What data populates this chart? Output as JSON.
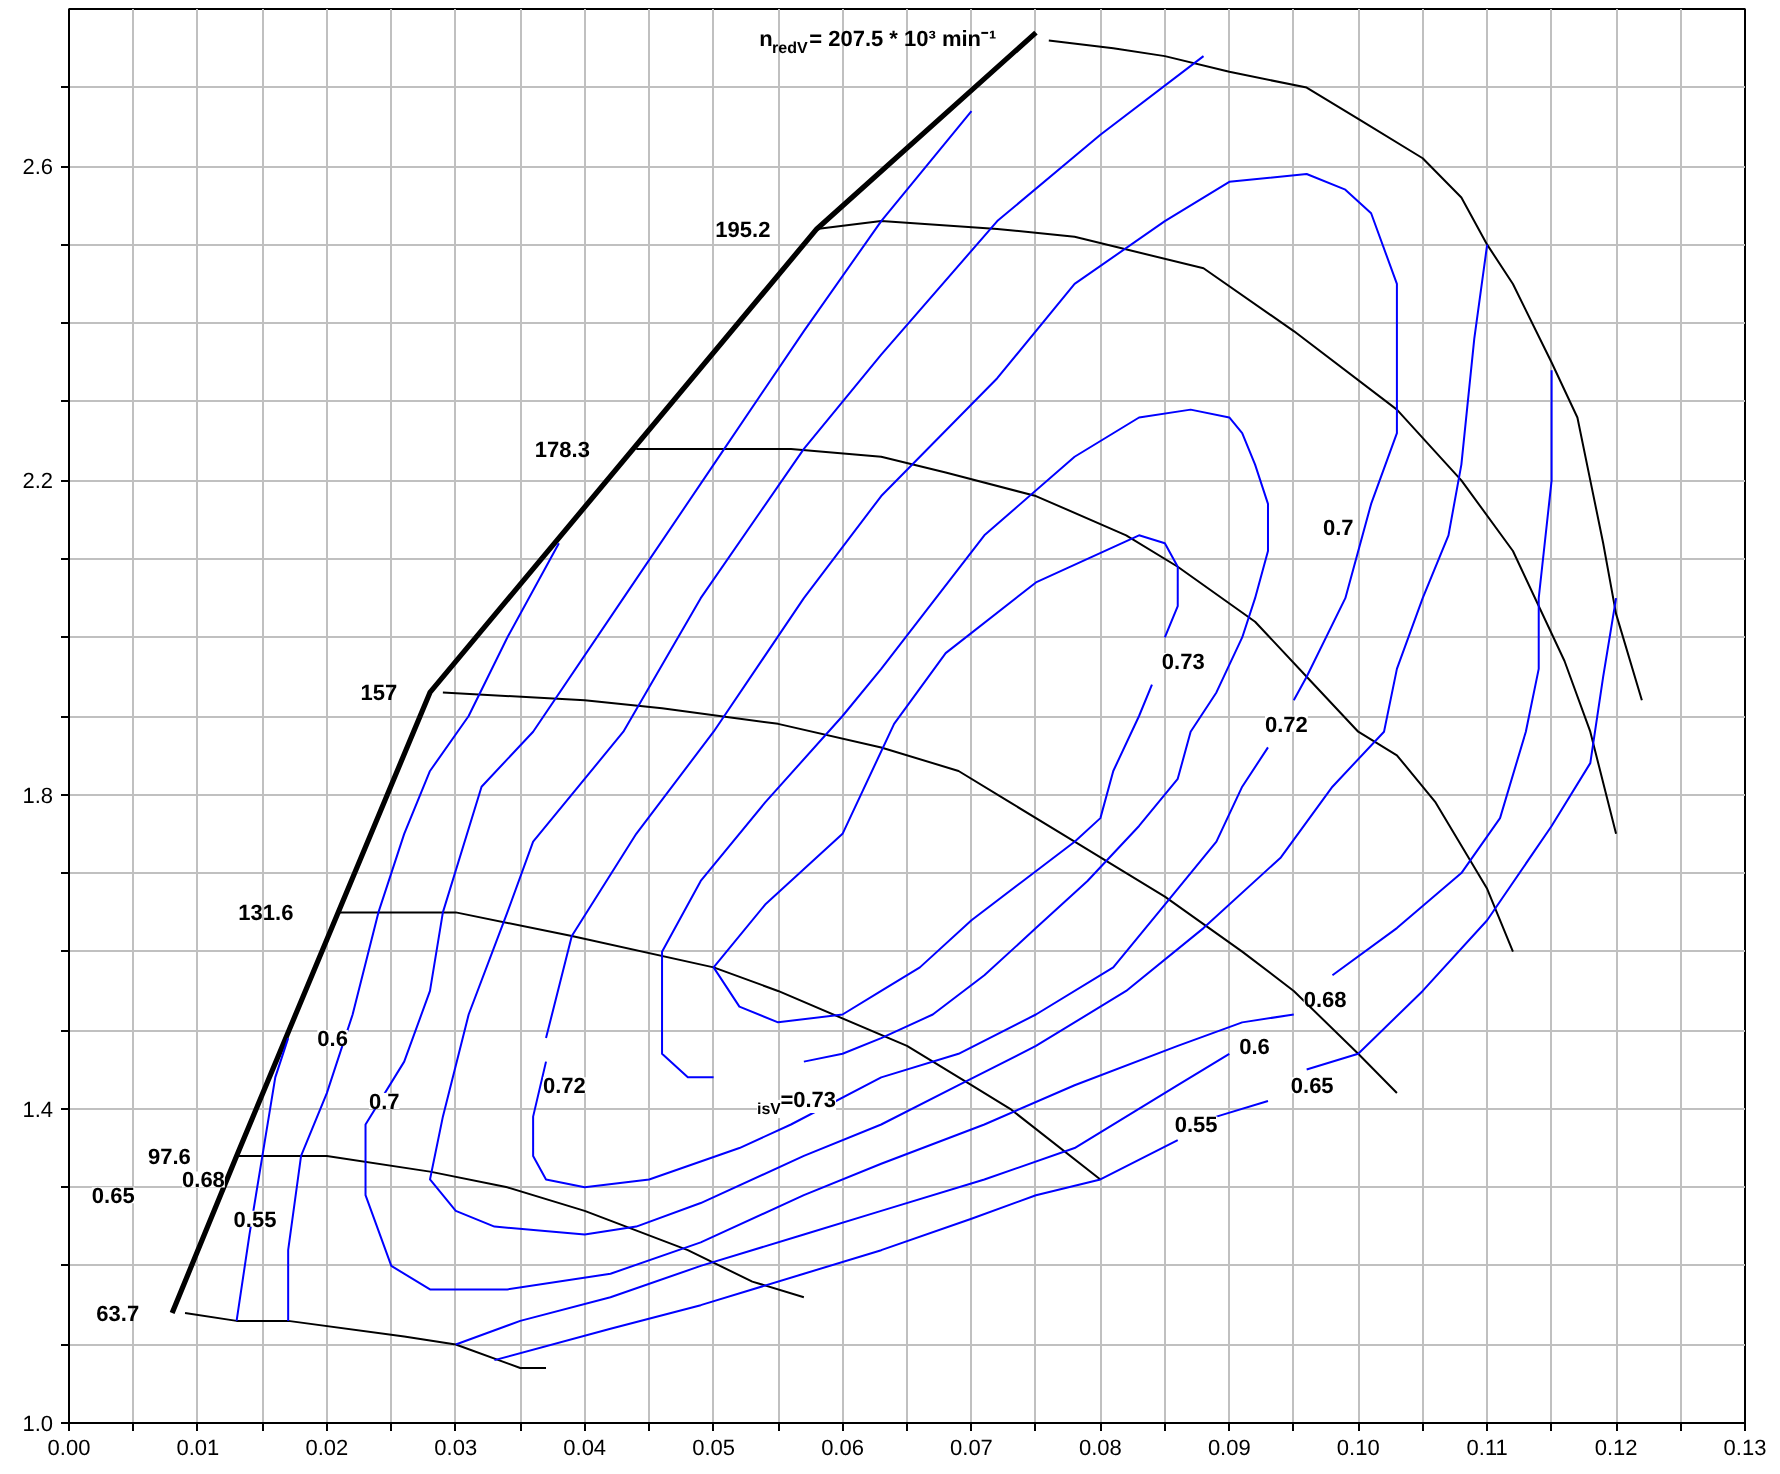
{
  "chart_data": {
    "type": "line",
    "xlim": [
      0,
      0.13
    ],
    "ylim": [
      1.0,
      2.8
    ],
    "xticks": [
      {
        "value": 0,
        "label": "0.00"
      },
      {
        "value": 0.005,
        "label": null
      },
      {
        "value": 0.01,
        "label": "0.01"
      },
      {
        "value": 0.015,
        "label": null
      },
      {
        "value": 0.02,
        "label": "0.02"
      },
      {
        "value": 0.025,
        "label": null
      },
      {
        "value": 0.03,
        "label": "0.03"
      },
      {
        "value": 0.035,
        "label": null
      },
      {
        "value": 0.04,
        "label": "0.04"
      },
      {
        "value": 0.045,
        "label": null
      },
      {
        "value": 0.05,
        "label": "0.05"
      },
      {
        "value": 0.055,
        "label": null
      },
      {
        "value": 0.06,
        "label": "0.06"
      },
      {
        "value": 0.065,
        "label": null
      },
      {
        "value": 0.07,
        "label": "0.07"
      },
      {
        "value": 0.075,
        "label": null
      },
      {
        "value": 0.08,
        "label": "0.08"
      },
      {
        "value": 0.085,
        "label": null
      },
      {
        "value": 0.09,
        "label": "0.09"
      },
      {
        "value": 0.095,
        "label": null
      },
      {
        "value": 0.1,
        "label": "0.10"
      },
      {
        "value": 0.105,
        "label": null
      },
      {
        "value": 0.11,
        "label": "0.11"
      },
      {
        "value": 0.115,
        "label": null
      },
      {
        "value": 0.12,
        "label": "0.12"
      },
      {
        "value": 0.125,
        "label": null
      },
      {
        "value": 0.13,
        "label": "0.13"
      }
    ],
    "yticks": [
      {
        "value": 1.0,
        "label": "1.0"
      },
      {
        "value": 1.1,
        "label": null
      },
      {
        "value": 1.2,
        "label": null
      },
      {
        "value": 1.3,
        "label": null
      },
      1.4,
      {
        "value": 1.5,
        "label": null
      },
      {
        "value": 1.6,
        "label": null
      },
      {
        "value": 1.7,
        "label": null
      },
      1.8,
      {
        "value": 1.9,
        "label": null
      },
      {
        "value": 2.0,
        "label": null
      },
      {
        "value": 2.1,
        "label": null
      },
      2.2,
      {
        "value": 2.3,
        "label": null
      },
      {
        "value": 2.4,
        "label": null
      },
      {
        "value": 2.5,
        "label": null
      },
      2.6,
      {
        "value": 2.7,
        "label": null
      }
    ],
    "grid": true,
    "series": [
      {
        "color": "#000000",
        "x": [
          0.008,
          0.013,
          0.028,
          0.058,
          0.075
        ],
        "values": [
          1.14,
          1.34,
          1.93,
          2.52,
          2.77
        ]
      },
      {
        "name": "63.7",
        "color": "#000000",
        "x": [
          0.009,
          0.013,
          0.017,
          0.026,
          0.03,
          0.035,
          0.037
        ],
        "values": [
          1.14,
          1.13,
          1.13,
          1.11,
          1.1,
          1.07,
          1.07
        ]
      },
      {
        "name": "97.6",
        "color": "#000000",
        "x": [
          0.013,
          0.02,
          0.028,
          0.034,
          0.04,
          0.048,
          0.053,
          0.057
        ],
        "values": [
          1.34,
          1.34,
          1.32,
          1.3,
          1.27,
          1.22,
          1.18,
          1.16
        ]
      },
      {
        "name": "131.6",
        "color": "#000000",
        "x": [
          0.021,
          0.03,
          0.039,
          0.05,
          0.055,
          0.065,
          0.07,
          0.073,
          0.08
        ],
        "values": [
          1.65,
          1.65,
          1.62,
          1.58,
          1.55,
          1.48,
          1.43,
          1.4,
          1.31
        ]
      },
      {
        "name": "157",
        "color": "#000000",
        "x": [
          0.029,
          0.04,
          0.046,
          0.055,
          0.063,
          0.069,
          0.073,
          0.078,
          0.085,
          0.091,
          0.095,
          0.1,
          0.103
        ],
        "values": [
          1.93,
          1.92,
          1.91,
          1.89,
          1.86,
          1.83,
          1.79,
          1.74,
          1.67,
          1.6,
          1.55,
          1.47,
          1.42
        ]
      },
      {
        "name": "178.3",
        "color": "#000000",
        "x": [
          0.044,
          0.056,
          0.063,
          0.068,
          0.075,
          0.082,
          0.086,
          0.092,
          0.096,
          0.1,
          0.103,
          0.106,
          0.11,
          0.112
        ],
        "values": [
          2.24,
          2.24,
          2.23,
          2.21,
          2.18,
          2.13,
          2.09,
          2.02,
          1.95,
          1.88,
          1.85,
          1.79,
          1.68,
          1.6
        ]
      },
      {
        "name": "195.2",
        "color": "#000000",
        "x": [
          0.058,
          0.063,
          0.072,
          0.078,
          0.088,
          0.095,
          0.103,
          0.108,
          0.112,
          0.116,
          0.118,
          0.12
        ],
        "values": [
          2.52,
          2.53,
          2.52,
          2.51,
          2.47,
          2.39,
          2.29,
          2.2,
          2.11,
          1.97,
          1.88,
          1.75
        ]
      },
      {
        "name": "n$_{redV}$= 207.5 * 10³ min⁻¹",
        "color": "#000000",
        "x": [
          0.076,
          0.081,
          0.085,
          0.09,
          0.096,
          0.1,
          0.105,
          0.108,
          0.11,
          0.112,
          0.115,
          0.117,
          0.118,
          0.119,
          0.12,
          0.122
        ],
        "values": [
          2.76,
          2.75,
          2.74,
          2.72,
          2.7,
          2.66,
          2.61,
          2.56,
          2.5,
          2.45,
          2.35,
          2.28,
          2.2,
          2.12,
          2.03,
          1.92
        ]
      },
      {
        "color": "#0000ff",
        "x": [
          0.013,
          0.014,
          0.015,
          0.016,
          0.017
        ],
        "values": [
          1.13,
          1.24,
          1.34,
          1.44,
          1.49
        ]
      },
      {
        "color": "#0000ff",
        "x": [
          0.017,
          0.017,
          0.018,
          0.02,
          0.022,
          0.024,
          0.026,
          0.028,
          0.031,
          0.034,
          0.038
        ],
        "values": [
          1.13,
          1.22,
          1.34,
          1.42,
          1.52,
          1.65,
          1.75,
          1.83,
          1.9,
          2.0,
          2.12
        ]
      },
      {
        "color": "#0000ff",
        "x": [
          0.07,
          0.063,
          0.057,
          0.05,
          0.043,
          0.036,
          0.032,
          0.029,
          0.028,
          0.026,
          0.023,
          0.023,
          0.025,
          0.028,
          0.034,
          0.042,
          0.049,
          0.057,
          0.063,
          0.071,
          0.078,
          0.086,
          0.091,
          0.095
        ],
        "values": [
          2.67,
          2.53,
          2.39,
          2.22,
          2.05,
          1.88,
          1.81,
          1.65,
          1.55,
          1.46,
          1.38,
          1.29,
          1.2,
          1.17,
          1.17,
          1.19,
          1.23,
          1.29,
          1.33,
          1.38,
          1.43,
          1.48,
          1.51,
          1.52
        ]
      },
      {
        "color": "#0000ff",
        "x": [
          0.098,
          0.103,
          0.108,
          0.111,
          0.113,
          0.114,
          0.114,
          0.115,
          0.115
        ],
        "values": [
          1.57,
          1.63,
          1.7,
          1.77,
          1.88,
          1.96,
          2.05,
          2.2,
          2.34
        ]
      },
      {
        "color": "#0000ff",
        "x": [
          0.088,
          0.08,
          0.072,
          0.063,
          0.057,
          0.049,
          0.043,
          0.036,
          0.034,
          0.031,
          0.029,
          0.028,
          0.03,
          0.033,
          0.04,
          0.044,
          0.049,
          0.057,
          0.063,
          0.069,
          0.075,
          0.082,
          0.088,
          0.094,
          0.098,
          0.102,
          0.103,
          0.105,
          0.107,
          0.108,
          0.109,
          0.11
        ],
        "values": [
          2.74,
          2.64,
          2.53,
          2.36,
          2.24,
          2.05,
          1.88,
          1.74,
          1.65,
          1.52,
          1.39,
          1.31,
          1.27,
          1.25,
          1.24,
          1.25,
          1.28,
          1.34,
          1.38,
          1.43,
          1.48,
          1.55,
          1.63,
          1.72,
          1.81,
          1.88,
          1.96,
          2.05,
          2.13,
          2.22,
          2.38,
          2.5
        ]
      },
      {
        "color": "#0000ff",
        "x": [
          0.037,
          0.036,
          0.036,
          0.037,
          0.04,
          0.045,
          0.052,
          0.056,
          0.063,
          0.069,
          0.075,
          0.081,
          0.085,
          0.089,
          0.091,
          0.093
        ],
        "values": [
          1.46,
          1.39,
          1.34,
          1.31,
          1.3,
          1.31,
          1.35,
          1.38,
          1.44,
          1.47,
          1.52,
          1.58,
          1.66,
          1.74,
          1.81,
          1.86
        ]
      },
      {
        "color": "#0000ff",
        "x": [
          0.095,
          0.096,
          0.099,
          0.101,
          0.103,
          0.103,
          0.103,
          0.101,
          0.099,
          0.096,
          0.09,
          0.085,
          0.078,
          0.072,
          0.063,
          0.057,
          0.05,
          0.044,
          0.039,
          0.037
        ],
        "values": [
          1.92,
          1.95,
          2.05,
          2.17,
          2.26,
          2.33,
          2.45,
          2.54,
          2.57,
          2.59,
          2.58,
          2.53,
          2.45,
          2.33,
          2.18,
          2.05,
          1.88,
          1.75,
          1.62,
          1.49
        ]
      },
      {
        "color": "#0000ff",
        "x": [
          0.05,
          0.048,
          0.046,
          0.046,
          0.046,
          0.049,
          0.054,
          0.06,
          0.063,
          0.071,
          0.078,
          0.083,
          0.087,
          0.09,
          0.091,
          0.092,
          0.093,
          0.093,
          0.092,
          0.091,
          0.089,
          0.087,
          0.086,
          0.083,
          0.079,
          0.075,
          0.071,
          0.067,
          0.063,
          0.06,
          0.057
        ],
        "values": [
          1.44,
          1.44,
          1.47,
          1.5,
          1.6,
          1.69,
          1.79,
          1.9,
          1.96,
          2.13,
          2.23,
          2.28,
          2.29,
          2.28,
          2.26,
          2.22,
          2.17,
          2.11,
          2.05,
          2.0,
          1.93,
          1.88,
          1.82,
          1.76,
          1.69,
          1.63,
          1.57,
          1.52,
          1.49,
          1.47,
          1.46
        ]
      },
      {
        "color": "#0000ff",
        "x": [
          0.085,
          0.086,
          0.086,
          0.085,
          0.083,
          0.075,
          0.068,
          0.064,
          0.06,
          0.054,
          0.05,
          0.052,
          0.055,
          0.06,
          0.063,
          0.066,
          0.07,
          0.074,
          0.078,
          0.08,
          0.081,
          0.083,
          0.084
        ],
        "values": [
          2.0,
          2.04,
          2.09,
          2.12,
          2.13,
          2.07,
          1.98,
          1.89,
          1.75,
          1.66,
          1.58,
          1.53,
          1.51,
          1.52,
          1.55,
          1.58,
          1.64,
          1.69,
          1.74,
          1.77,
          1.83,
          1.9,
          1.94
        ]
      },
      {
        "color": "#0000ff",
        "x": [
          0.03,
          0.035,
          0.042,
          0.049,
          0.057,
          0.063,
          0.071,
          0.078,
          0.086,
          0.09
        ],
        "values": [
          1.1,
          1.13,
          1.16,
          1.2,
          1.24,
          1.27,
          1.31,
          1.35,
          1.43,
          1.47
        ]
      },
      {
        "color": "#0000ff",
        "x": [
          0.033,
          0.042,
          0.049,
          0.057,
          0.063,
          0.07,
          0.075,
          0.08,
          0.086
        ],
        "values": [
          1.08,
          1.12,
          1.15,
          1.19,
          1.22,
          1.26,
          1.29,
          1.31,
          1.36
        ]
      },
      {
        "color": "#0000ff",
        "x": [
          0.089,
          0.093
        ],
        "values": [
          1.39,
          1.41
        ]
      },
      {
        "color": "#0000ff",
        "x": [
          0.096,
          0.1,
          0.105,
          0.11,
          0.115,
          0.118,
          0.119,
          0.12
        ],
        "values": [
          1.45,
          1.47,
          1.55,
          1.64,
          1.76,
          1.84,
          1.95,
          2.05
        ]
      }
    ],
    "annotations": [
      "0.65",
      "0.68",
      "0.55",
      "0.6",
      "0.7",
      "0.72",
      "$_{isV}$=0.73",
      "0.73",
      "0.72",
      "0.7",
      "0.68",
      "0.6",
      "0.65",
      "0.55"
    ]
  }
}
